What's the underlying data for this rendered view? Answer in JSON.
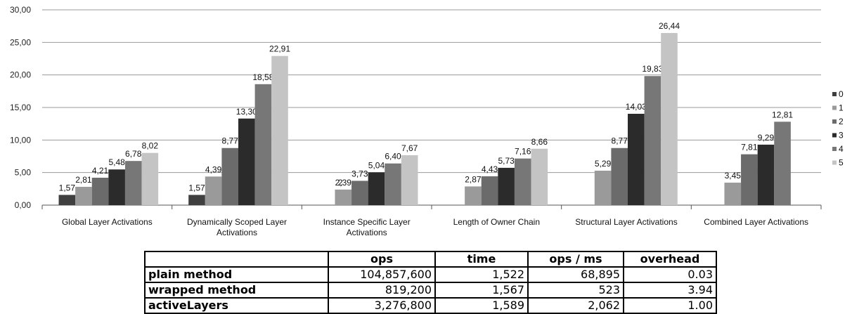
{
  "chart_data": {
    "type": "bar",
    "categories": [
      [
        "Global Layer Activations"
      ],
      [
        "Dynamically Scoped Layer",
        "Activations"
      ],
      [
        "Instance Specific Layer",
        "Activations"
      ],
      [
        "Length of Owner Chain"
      ],
      [
        "Structural Layer Activations"
      ],
      [
        "Combined Layer Activations"
      ]
    ],
    "series": [
      {
        "name": "0",
        "color": "#3f3f3f",
        "values": [
          1.57,
          1.57,
          null,
          null,
          null,
          null
        ],
        "labels": [
          "1,57",
          "1,57",
          null,
          null,
          null,
          null
        ]
      },
      {
        "name": "1",
        "color": "#9a9a9a",
        "values": [
          2.81,
          4.39,
          2.39,
          2.87,
          5.29,
          3.45
        ],
        "labels": [
          "2,81",
          "4,39",
          "2,39",
          "2,87",
          "5,29",
          "3,45"
        ]
      },
      {
        "name": "2",
        "color": "#6b6b6b",
        "values": [
          4.21,
          8.77,
          3.73,
          4.43,
          8.77,
          7.81
        ],
        "labels": [
          "4,21",
          "8,77",
          "3,73",
          "4,43",
          "8,77",
          "7,81"
        ]
      },
      {
        "name": "3",
        "color": "#2b2b2b",
        "values": [
          5.48,
          13.3,
          5.04,
          5.73,
          14.03,
          9.29
        ],
        "labels": [
          "5,48",
          "13,30",
          "5,04",
          "5,73",
          "14,03",
          "9,29"
        ]
      },
      {
        "name": "4",
        "color": "#777777",
        "values": [
          6.78,
          18.58,
          6.4,
          7.16,
          19.83,
          12.81
        ],
        "labels": [
          "6,78",
          "18,58",
          "6,40",
          "7,16",
          "19,83",
          "12,81"
        ]
      },
      {
        "name": "5",
        "color": "#c4c4c4",
        "values": [
          8.02,
          22.91,
          7.67,
          8.66,
          26.44,
          null
        ],
        "labels": [
          "8,02",
          "22,91",
          "7,67",
          "8,66",
          "26,44",
          null
        ]
      }
    ],
    "extra_labels": [
      {
        "category": 2,
        "text": "2"
      }
    ],
    "yticks": [
      "0,00",
      "5,00",
      "10,00",
      "15,00",
      "20,00",
      "25,00",
      "30,00"
    ],
    "ylim": [
      0,
      30
    ],
    "grid": true,
    "legend_position": "right"
  },
  "table": {
    "headers": [
      "",
      "ops",
      "time",
      "ops / ms",
      "overhead"
    ],
    "rows": [
      [
        "plain method",
        "104,857,600",
        "1,522",
        "68,895",
        "0.03"
      ],
      [
        "wrapped method",
        "819,200",
        "1,567",
        "523",
        "3.94"
      ],
      [
        "activeLayers",
        "3,276,800",
        "1,589",
        "2,062",
        "1.00"
      ]
    ]
  }
}
